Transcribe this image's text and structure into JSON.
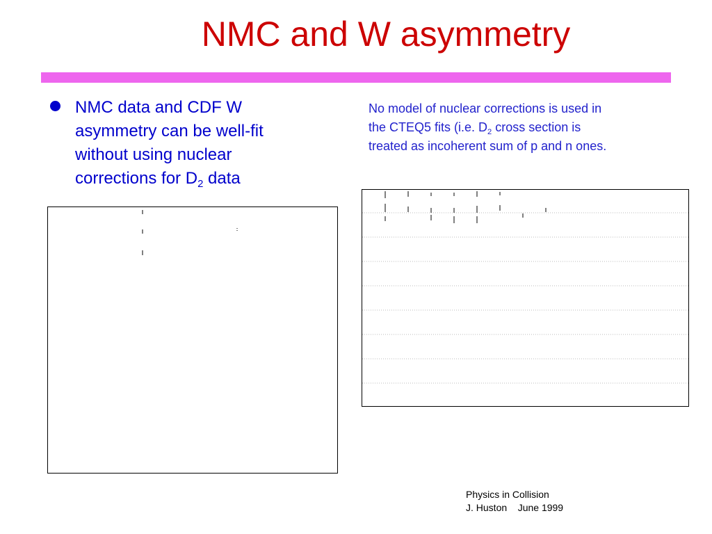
{
  "slide": {
    "title": "NMC and W asymmetry",
    "bullet": {
      "line1": "NMC data and CDF W",
      "line2": "asymmetry can be well-fit",
      "line3": "without using nuclear",
      "line4_pre": "corrections for D",
      "line4_sub": "2",
      "line4_post": " data"
    },
    "note": {
      "line1": "No model of nuclear corrections is used in",
      "line2_pre": "the CTEQ5 fits (i.e. D",
      "line2_sub": "2",
      "line2_post": " cross section is",
      "line3": "treated as incoherent sum of p and n ones."
    },
    "footer": {
      "line1": "Physics in Collision",
      "line2": "J. Huston    June 1999"
    }
  },
  "colors": {
    "title": "#cc0000",
    "rule": "#ee66ee",
    "bullet_text": "#0000cc",
    "note_text": "#2222cc"
  }
}
